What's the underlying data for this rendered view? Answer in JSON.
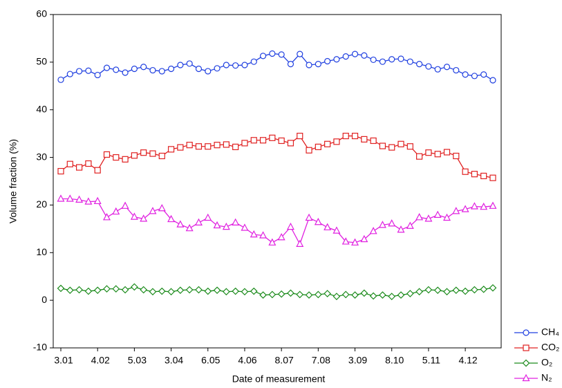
{
  "chart_data": {
    "type": "line",
    "x_label": "Date of measurement",
    "y_label": "Volume fraction (%)",
    "categories": [
      "3.01",
      null,
      null,
      null,
      "4.02",
      null,
      null,
      null,
      "5.03",
      null,
      null,
      null,
      "3.04",
      null,
      null,
      null,
      "6.05",
      null,
      null,
      null,
      "4.06",
      null,
      null,
      null,
      "8.07",
      null,
      null,
      null,
      "7.08",
      null,
      null,
      null,
      "3.09",
      null,
      null,
      null,
      "8.10",
      null,
      null,
      null,
      "5.11",
      null,
      null,
      null,
      "4.12",
      null,
      null,
      null
    ],
    "ylim": [
      -10,
      60
    ],
    "yticks": [
      -10,
      0,
      10,
      20,
      30,
      40,
      50,
      60
    ],
    "grid": false,
    "legend": "bottom-right-outside",
    "series": [
      {
        "name": "CH₄",
        "color": "#1f3fe0",
        "marker": "circle",
        "values": [
          46.3,
          47.5,
          48.1,
          48.2,
          47.3,
          48.8,
          48.4,
          47.8,
          48.6,
          49.0,
          48.3,
          48.1,
          48.6,
          49.4,
          49.7,
          48.6,
          48.1,
          48.7,
          49.4,
          49.3,
          49.4,
          50.1,
          51.3,
          51.8,
          51.6,
          49.6,
          51.7,
          49.4,
          49.6,
          50.2,
          50.6,
          51.2,
          51.7,
          51.4,
          50.5,
          50.1,
          50.6,
          50.7,
          50.1,
          49.6,
          49.1,
          48.5,
          49.0,
          48.3,
          47.4,
          47.1,
          47.4,
          46.2
        ]
      },
      {
        "name": "CO₂",
        "color": "#e02020",
        "marker": "square",
        "values": [
          27.1,
          28.6,
          27.9,
          28.7,
          27.3,
          30.6,
          30.0,
          29.6,
          30.4,
          31.0,
          30.8,
          30.3,
          31.7,
          32.1,
          32.6,
          32.3,
          32.3,
          32.6,
          32.7,
          32.2,
          33.0,
          33.6,
          33.6,
          34.1,
          33.5,
          33.0,
          34.5,
          31.5,
          32.2,
          32.8,
          33.3,
          34.5,
          34.5,
          33.8,
          33.5,
          32.4,
          32.1,
          32.8,
          32.3,
          30.2,
          31.0,
          30.7,
          31.1,
          30.3,
          27.0,
          26.5,
          26.1,
          25.7
        ]
      },
      {
        "name": "O₂",
        "color": "#1a8a1a",
        "marker": "diamond",
        "values": [
          2.5,
          2.1,
          2.2,
          1.9,
          2.1,
          2.4,
          2.4,
          2.2,
          2.8,
          2.2,
          1.8,
          1.9,
          1.8,
          2.1,
          2.2,
          2.2,
          1.9,
          2.1,
          1.8,
          1.9,
          1.8,
          1.9,
          1.1,
          1.2,
          1.3,
          1.5,
          1.2,
          1.1,
          1.2,
          1.4,
          0.8,
          1.2,
          1.1,
          1.5,
          0.9,
          1.1,
          0.8,
          1.1,
          1.4,
          1.8,
          2.2,
          2.1,
          1.8,
          2.1,
          1.9,
          2.2,
          2.3,
          2.6
        ]
      },
      {
        "name": "N₂",
        "color": "#e020e0",
        "marker": "triangle",
        "values": [
          21.3,
          21.3,
          21.1,
          20.7,
          20.8,
          17.4,
          18.6,
          19.8,
          17.5,
          17.1,
          18.7,
          19.3,
          17.0,
          15.9,
          15.1,
          16.3,
          17.3,
          15.7,
          15.4,
          16.3,
          15.2,
          13.8,
          13.6,
          12.1,
          13.2,
          15.4,
          11.8,
          17.3,
          16.4,
          15.3,
          14.6,
          12.3,
          12.1,
          12.8,
          14.5,
          15.8,
          16.1,
          14.8,
          15.6,
          17.4,
          17.1,
          17.9,
          17.3,
          18.7,
          19.1,
          19.7,
          19.6,
          19.8
        ]
      }
    ]
  }
}
